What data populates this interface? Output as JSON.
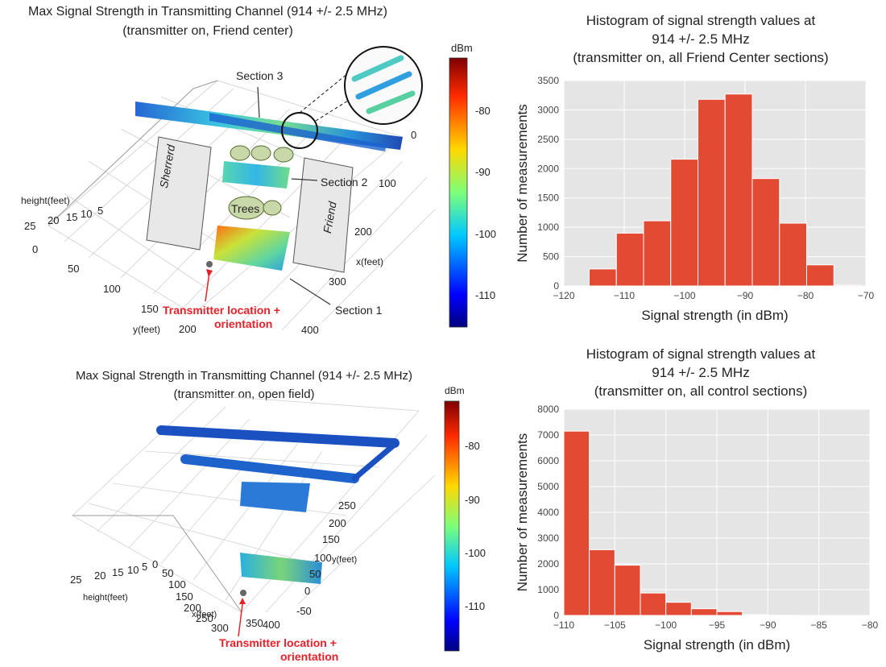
{
  "colors": {
    "bar_fill": "#e24a33",
    "bar_edge": "#ffffff",
    "plot_bg": "#e5e5e5",
    "grid": "#ffffff",
    "annotation_red": "#e8202a",
    "building_fill": "#e8e8e8",
    "tree_fill": "#c8d8a8"
  },
  "panels": {
    "top_3d": {
      "title_line1": "Max Signal Strength in Transmitting Channel (914 +/- 2.5 MHz)",
      "title_line2": "(transmitter on, Friend center)",
      "axis_height_label": "height(feet)",
      "axis_x_label": "x(feet)",
      "axis_y_label": "y(feet)",
      "height_ticks": [
        "25",
        "20",
        "15",
        "10",
        "5",
        "0"
      ],
      "x_ticks": [
        "0",
        "100",
        "200",
        "300",
        "400"
      ],
      "y_ticks": [
        "50",
        "100",
        "150",
        "200"
      ],
      "section1": "Section 1",
      "section2": "Section 2",
      "section3": "Section 3",
      "trees": "Trees",
      "building_left": "Sherrerd",
      "building_right": "Friend",
      "transmitter_line1": "Transmitter location +",
      "transmitter_line2": "orientation",
      "colorbar_unit": "dBm",
      "colorbar_ticks": [
        "-80",
        "-90",
        "-100",
        "-110"
      ]
    },
    "bottom_3d": {
      "title_line1": "Max Signal Strength in Transmitting Channel (914 +/- 2.5 MHz)",
      "title_line2": "(transmitter on, open field)",
      "axis_height_label": "height(feet)",
      "axis_x_label": "x(feet)",
      "axis_y_label": "y(feet)",
      "height_ticks": [
        "25",
        "20",
        "15",
        "10",
        "5",
        "0"
      ],
      "x_ticks": [
        "50",
        "100",
        "150",
        "200",
        "250",
        "300",
        "350",
        "400"
      ],
      "y_ticks": [
        "250",
        "200",
        "150",
        "100",
        "50",
        "0",
        "-50"
      ],
      "transmitter_line1": "Transmitter location +",
      "transmitter_line2": "orientation",
      "colorbar_unit": "dBm",
      "colorbar_ticks": [
        "-80",
        "-90",
        "-100",
        "-110"
      ]
    }
  },
  "chart_data": [
    {
      "type": "bar",
      "title": "Histogram of signal strength values at 914 +/- 2.5 MHz (transmitter on, all Friend Center sections)",
      "title_lines": [
        "Histogram of signal strength values at",
        "914 +/- 2.5 MHz",
        "(transmitter on, all Friend Center sections)"
      ],
      "xlabel": "Signal strength (in dBm)",
      "ylabel": "Number of measurements",
      "xlim": [
        -120,
        -70
      ],
      "ylim": [
        0,
        3500
      ],
      "xticks": [
        -120,
        -110,
        -100,
        -90,
        -80,
        -70
      ],
      "xtick_labels": [
        "−120",
        "−110",
        "−100",
        "−90",
        "−80",
        "−70"
      ],
      "yticks": [
        0,
        500,
        1000,
        1500,
        2000,
        2500,
        3000,
        3500
      ],
      "grid": true,
      "bins": [
        {
          "x0": -115.8,
          "x1": -111.3,
          "count": 290
        },
        {
          "x0": -111.3,
          "x1": -106.8,
          "count": 900
        },
        {
          "x0": -106.8,
          "x1": -102.3,
          "count": 1110
        },
        {
          "x0": -102.3,
          "x1": -97.8,
          "count": 2160
        },
        {
          "x0": -97.8,
          "x1": -93.3,
          "count": 3180
        },
        {
          "x0": -93.3,
          "x1": -88.8,
          "count": 3270
        },
        {
          "x0": -88.8,
          "x1": -84.3,
          "count": 1830
        },
        {
          "x0": -84.3,
          "x1": -79.8,
          "count": 1070
        },
        {
          "x0": -79.8,
          "x1": -75.3,
          "count": 360
        },
        {
          "x0": -75.3,
          "x1": -70.8,
          "count": 15
        }
      ]
    },
    {
      "type": "bar",
      "title": "Histogram of signal strength values at 914 +/- 2.5 MHz (transmitter on, all control sections)",
      "title_lines": [
        "Histogram of signal strength values at",
        "914 +/- 2.5 MHz",
        "(transmitter on, all control sections)"
      ],
      "xlabel": "Signal strength (in dBm)",
      "ylabel": "Number of measurements",
      "xlim": [
        -110,
        -80
      ],
      "ylim": [
        0,
        8000
      ],
      "xticks": [
        -110,
        -105,
        -100,
        -95,
        -90,
        -85,
        -80
      ],
      "xtick_labels": [
        "−110",
        "−105",
        "−100",
        "−95",
        "−90",
        "−85",
        "−80"
      ],
      "yticks": [
        0,
        1000,
        2000,
        3000,
        4000,
        5000,
        6000,
        7000,
        8000
      ],
      "grid": true,
      "bins": [
        {
          "x0": -110,
          "x1": -107.5,
          "count": 7150
        },
        {
          "x0": -107.5,
          "x1": -105,
          "count": 2550
        },
        {
          "x0": -105,
          "x1": -102.5,
          "count": 1950
        },
        {
          "x0": -102.5,
          "x1": -100,
          "count": 870
        },
        {
          "x0": -100,
          "x1": -97.5,
          "count": 510
        },
        {
          "x0": -97.5,
          "x1": -95,
          "count": 260
        },
        {
          "x0": -95,
          "x1": -92.5,
          "count": 150
        },
        {
          "x0": -92.5,
          "x1": -90,
          "count": 30
        },
        {
          "x0": -90,
          "x1": -87.5,
          "count": 10
        }
      ]
    }
  ]
}
